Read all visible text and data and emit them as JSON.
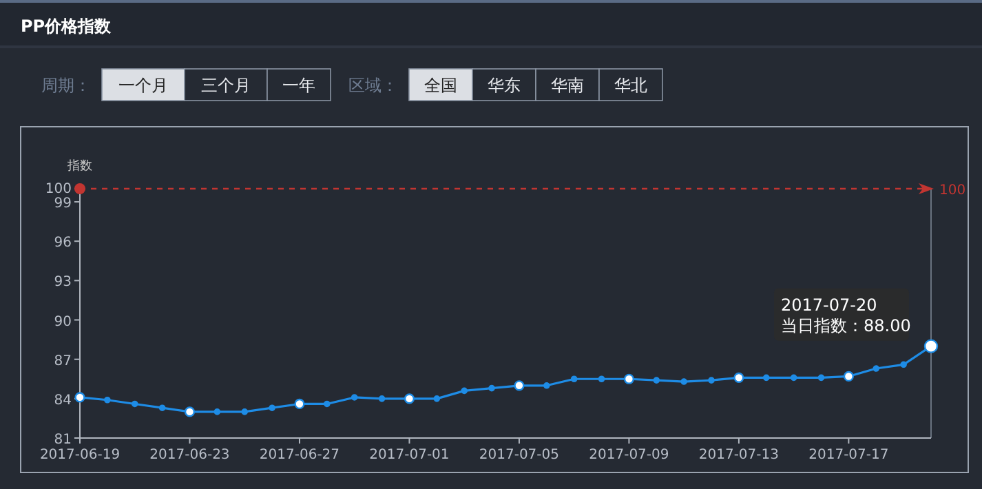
{
  "chart_data": {
    "type": "line",
    "title": "PP价格指数",
    "ylabel": "指数",
    "x": [
      "2017-06-19",
      "2017-06-20",
      "2017-06-21",
      "2017-06-22",
      "2017-06-23",
      "2017-06-24",
      "2017-06-25",
      "2017-06-26",
      "2017-06-27",
      "2017-06-28",
      "2017-06-29",
      "2017-06-30",
      "2017-07-01",
      "2017-07-02",
      "2017-07-03",
      "2017-07-04",
      "2017-07-05",
      "2017-07-06",
      "2017-07-07",
      "2017-07-08",
      "2017-07-09",
      "2017-07-10",
      "2017-07-11",
      "2017-07-12",
      "2017-07-13",
      "2017-07-14",
      "2017-07-15",
      "2017-07-16",
      "2017-07-17",
      "2017-07-18",
      "2017-07-19",
      "2017-07-20"
    ],
    "series": [
      {
        "color": "#1e8ce6",
        "values": [
          84.1,
          83.9,
          83.6,
          83.3,
          83.0,
          83.0,
          83.0,
          83.3,
          83.6,
          83.6,
          84.1,
          84.0,
          84.0,
          84.0,
          84.6,
          84.8,
          85.0,
          85.0,
          85.5,
          85.5,
          85.5,
          85.4,
          85.3,
          85.4,
          85.6,
          85.6,
          85.6,
          85.6,
          85.7,
          86.3,
          86.6,
          88.0
        ]
      }
    ],
    "xlim": [
      "2017-06-19",
      "2017-07-20"
    ],
    "xticks": [
      {
        "value": "2017-06-19",
        "label": "2017-06-19"
      },
      {
        "value": "2017-06-23",
        "label": "2017-06-23"
      },
      {
        "value": "2017-06-27",
        "label": "2017-06-27"
      },
      {
        "value": "2017-07-01",
        "label": "2017-07-01"
      },
      {
        "value": "2017-07-05",
        "label": "2017-07-05"
      },
      {
        "value": "2017-07-09",
        "label": "2017-07-09"
      },
      {
        "value": "2017-07-13",
        "label": "2017-07-13"
      },
      {
        "value": "2017-07-17",
        "label": "2017-07-17"
      }
    ],
    "ylim": [
      81,
      100
    ],
    "yticks": [
      81,
      84,
      87,
      90,
      93,
      96,
      99,
      100
    ],
    "ref_lines": [
      {
        "axis": "y",
        "value": 100,
        "label": "100",
        "color": "#c23531",
        "line_style": "dashed"
      }
    ],
    "marker": "circle",
    "line_style": "solid",
    "grid": false,
    "annotations": [
      "周期：",
      "一个月",
      "三个月",
      "一年",
      "区域：",
      "全国",
      "华东",
      "华南",
      "华北",
      {
        "text": "2017-07-20\n当日指数：88.00",
        "x": "2017-07-20",
        "y": 88
      }
    ]
  }
}
